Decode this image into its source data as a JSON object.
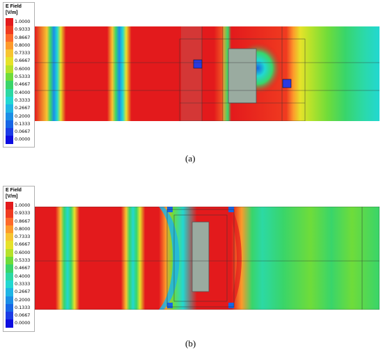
{
  "legend": {
    "title": "E Field",
    "unit": "[V/m]",
    "values": [
      "1.0000",
      "0.9333",
      "0.8667",
      "0.8000",
      "0.7333",
      "0.6667",
      "0.6000",
      "0.5333",
      "0.4667",
      "0.4000",
      "0.3333",
      "0.2667",
      "0.2000",
      "0.1333",
      "0.0667",
      "0.0000"
    ],
    "colors": [
      "#e31a1c",
      "#f03b20",
      "#fd6a2b",
      "#fd9a2b",
      "#f7c531",
      "#e6e22a",
      "#b7e22a",
      "#6fdc3a",
      "#39d56a",
      "#2cd9a4",
      "#22d8d2",
      "#1fb5e5",
      "#1b8ee6",
      "#1766e6",
      "#1b3ce6",
      "#0d0de0"
    ]
  },
  "panels": [
    {
      "caption": "(a)"
    },
    {
      "caption": "(b)"
    }
  ]
}
